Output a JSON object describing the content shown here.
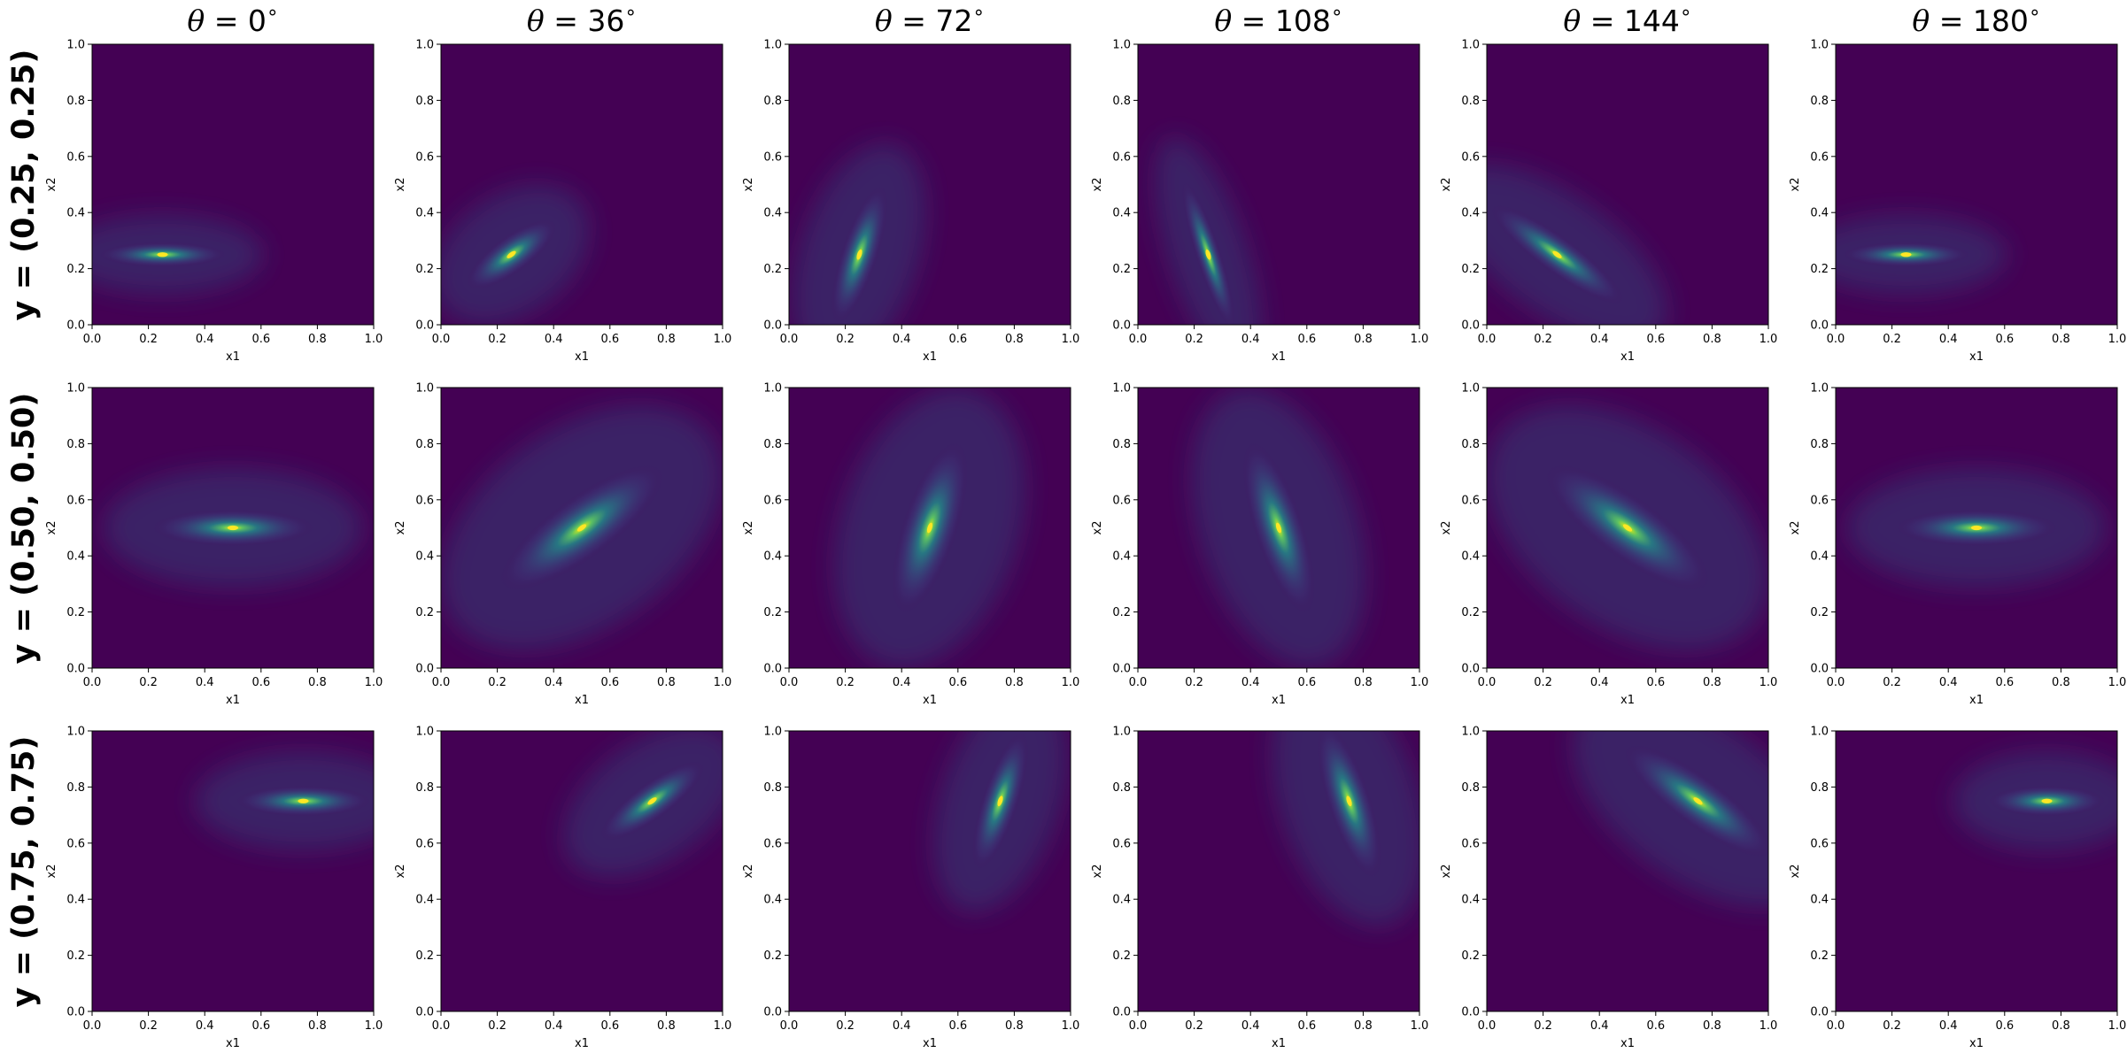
{
  "figure": {
    "column_titles": [
      {
        "prefix": "θ",
        "text": " = 0",
        "deg": "∘"
      },
      {
        "prefix": "θ",
        "text": " = 36",
        "deg": "∘"
      },
      {
        "prefix": "θ",
        "text": " = 72",
        "deg": "∘"
      },
      {
        "prefix": "θ",
        "text": " = 108",
        "deg": "∘"
      },
      {
        "prefix": "θ",
        "text": " = 144",
        "deg": "∘"
      },
      {
        "prefix": "θ",
        "text": " = 180",
        "deg": "∘"
      }
    ],
    "row_labels": [
      "y = (0.25, 0.25)",
      "y = (0.50, 0.50)",
      "y = (0.75, 0.75)"
    ]
  },
  "colors": {
    "background_low": "#440154",
    "mid": "#21918c",
    "high": "#fde725"
  },
  "chart_data": {
    "type": "heatmap",
    "colormap": "viridis",
    "xlabel": "x1",
    "ylabel": "x2",
    "xlim": [
      0,
      1
    ],
    "ylim": [
      0,
      1
    ],
    "xticks": [
      "0.0",
      "0.2",
      "0.4",
      "0.6",
      "0.8",
      "1.0"
    ],
    "yticks": [
      "0.0",
      "0.2",
      "0.4",
      "0.6",
      "0.8",
      "1.0"
    ],
    "grid": false,
    "thetas_deg": [
      0,
      36,
      72,
      108,
      144,
      180
    ],
    "centers": [
      [
        0.25,
        0.25
      ],
      [
        0.5,
        0.5
      ],
      [
        0.75,
        0.75
      ]
    ],
    "panels": [
      {
        "row": 0,
        "col": 0,
        "theta": 0,
        "center": [
          0.25,
          0.25
        ],
        "orientation_deg": 0,
        "spread": [
          0.14,
          0.02
        ]
      },
      {
        "row": 0,
        "col": 1,
        "theta": 36,
        "center": [
          0.25,
          0.25
        ],
        "orientation_deg": -36,
        "spread": [
          0.12,
          0.03
        ]
      },
      {
        "row": 0,
        "col": 2,
        "theta": 72,
        "center": [
          0.25,
          0.25
        ],
        "orientation_deg": -72,
        "spread": [
          0.16,
          0.03
        ]
      },
      {
        "row": 0,
        "col": 3,
        "theta": 108,
        "center": [
          0.25,
          0.25
        ],
        "orientation_deg": -108,
        "spread": [
          0.17,
          0.02
        ]
      },
      {
        "row": 0,
        "col": 4,
        "theta": 144,
        "center": [
          0.25,
          0.25
        ],
        "orientation_deg": -144,
        "spread": [
          0.18,
          0.03
        ]
      },
      {
        "row": 0,
        "col": 5,
        "theta": 180,
        "center": [
          0.25,
          0.25
        ],
        "orientation_deg": -180,
        "spread": [
          0.14,
          0.02
        ]
      },
      {
        "row": 1,
        "col": 0,
        "theta": 0,
        "center": [
          0.5,
          0.5
        ],
        "orientation_deg": 0,
        "spread": [
          0.18,
          0.03
        ]
      },
      {
        "row": 1,
        "col": 1,
        "theta": 36,
        "center": [
          0.5,
          0.5
        ],
        "orientation_deg": -36,
        "spread": [
          0.22,
          0.05
        ]
      },
      {
        "row": 1,
        "col": 2,
        "theta": 72,
        "center": [
          0.5,
          0.5
        ],
        "orientation_deg": -72,
        "spread": [
          0.2,
          0.045
        ]
      },
      {
        "row": 1,
        "col": 3,
        "theta": 108,
        "center": [
          0.5,
          0.5
        ],
        "orientation_deg": -108,
        "spread": [
          0.2,
          0.04
        ]
      },
      {
        "row": 1,
        "col": 4,
        "theta": 144,
        "center": [
          0.5,
          0.5
        ],
        "orientation_deg": -144,
        "spread": [
          0.22,
          0.05
        ]
      },
      {
        "row": 1,
        "col": 5,
        "theta": 180,
        "center": [
          0.5,
          0.5
        ],
        "orientation_deg": -180,
        "spread": [
          0.18,
          0.03
        ]
      },
      {
        "row": 2,
        "col": 0,
        "theta": 0,
        "center": [
          0.75,
          0.75
        ],
        "orientation_deg": 0,
        "spread": [
          0.15,
          0.025
        ]
      },
      {
        "row": 2,
        "col": 1,
        "theta": 36,
        "center": [
          0.75,
          0.75
        ],
        "orientation_deg": -36,
        "spread": [
          0.14,
          0.03
        ]
      },
      {
        "row": 2,
        "col": 2,
        "theta": 72,
        "center": [
          0.75,
          0.75
        ],
        "orientation_deg": -72,
        "spread": [
          0.16,
          0.03
        ]
      },
      {
        "row": 2,
        "col": 3,
        "theta": 108,
        "center": [
          0.75,
          0.75
        ],
        "orientation_deg": -108,
        "spread": [
          0.18,
          0.035
        ]
      },
      {
        "row": 2,
        "col": 4,
        "theta": 144,
        "center": [
          0.75,
          0.75
        ],
        "orientation_deg": -144,
        "spread": [
          0.2,
          0.04
        ]
      },
      {
        "row": 2,
        "col": 5,
        "theta": 180,
        "center": [
          0.75,
          0.75
        ],
        "orientation_deg": -180,
        "spread": [
          0.13,
          0.025
        ]
      }
    ]
  }
}
